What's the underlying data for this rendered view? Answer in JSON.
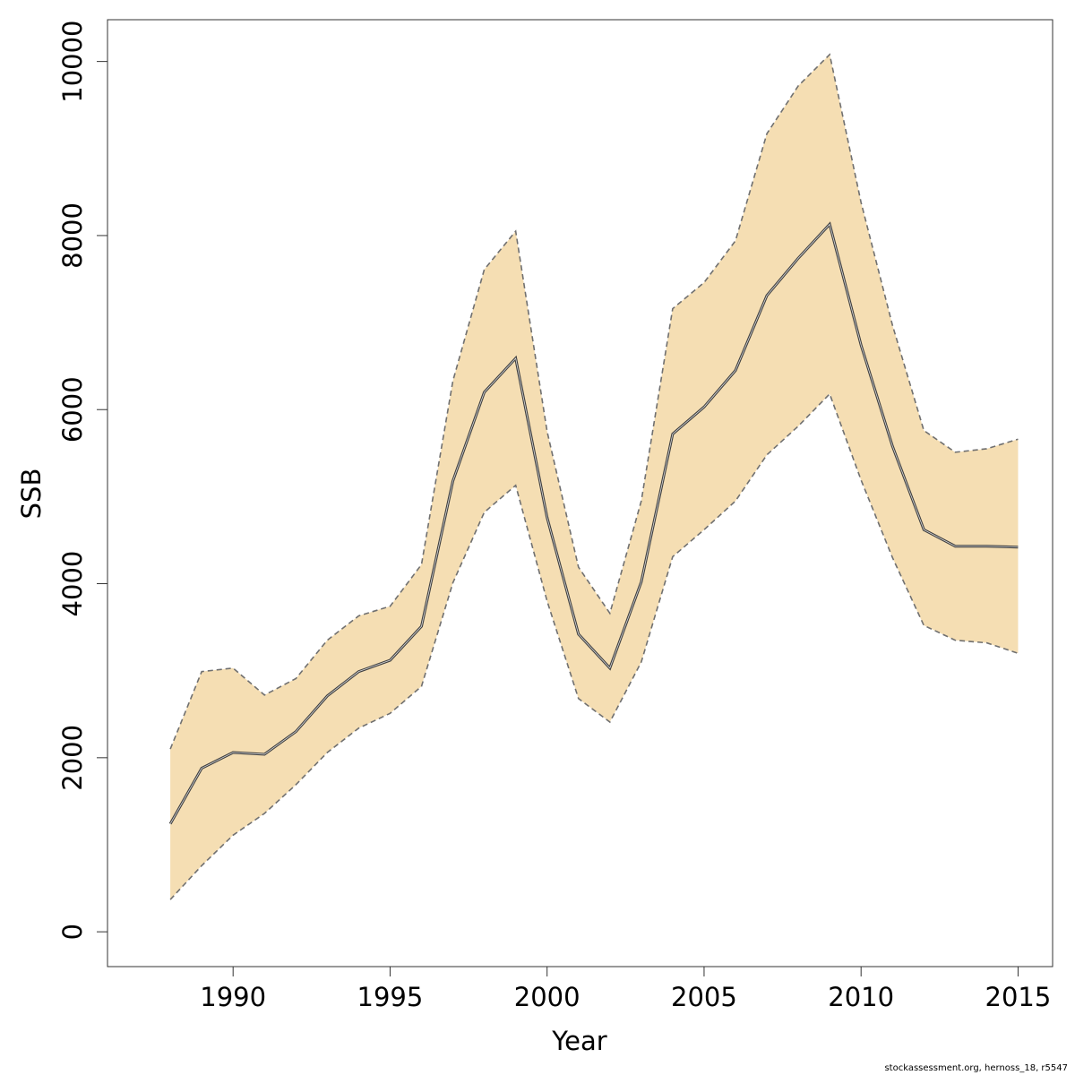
{
  "chart_data": {
    "type": "area",
    "xlabel": "Year",
    "ylabel": "SSB",
    "xlim": [
      1986.0,
      2016.1
    ],
    "ylim": [
      -400,
      10480
    ],
    "xticks": [
      1990,
      1995,
      2000,
      2005,
      2010,
      2015
    ],
    "yticks": [
      0,
      2000,
      4000,
      6000,
      8000,
      10000
    ],
    "grid": false,
    "colors": {
      "band": "#f5deb3",
      "line": "#404040",
      "bound": "#707070"
    },
    "x": [
      1988,
      1989,
      1990,
      1991,
      1992,
      1993,
      1994,
      1995,
      1996,
      1997,
      1998,
      1999,
      2000,
      2001,
      2002,
      2003,
      2004,
      2005,
      2006,
      2007,
      2008,
      2009,
      2010,
      2011,
      2012,
      2013,
      2014,
      2015
    ],
    "series": [
      {
        "role": "estimate",
        "values": [
          1240,
          1880,
          2060,
          2040,
          2300,
          2710,
          2990,
          3120,
          3510,
          5180,
          6200,
          6590,
          4760,
          3420,
          3030,
          4020,
          5720,
          6030,
          6450,
          7310,
          7740,
          8130,
          6740,
          5580,
          4620,
          4430,
          4430,
          4420
        ]
      },
      {
        "role": "upper",
        "values": [
          2100,
          2990,
          3030,
          2720,
          2910,
          3350,
          3630,
          3740,
          4220,
          6330,
          7610,
          8050,
          5750,
          4190,
          3660,
          4950,
          7160,
          7460,
          7940,
          9170,
          9720,
          10080,
          8380,
          6970,
          5760,
          5510,
          5550,
          5660
        ]
      },
      {
        "role": "lower",
        "values": [
          370,
          760,
          1110,
          1360,
          1690,
          2060,
          2340,
          2510,
          2820,
          4010,
          4820,
          5130,
          3800,
          2680,
          2410,
          3100,
          4310,
          4620,
          4950,
          5480,
          5810,
          6180,
          5190,
          4300,
          3520,
          3350,
          3320,
          3200
        ]
      }
    ]
  },
  "footer": {
    "credit": "stockassessment.org, hernoss_18, r5547"
  }
}
